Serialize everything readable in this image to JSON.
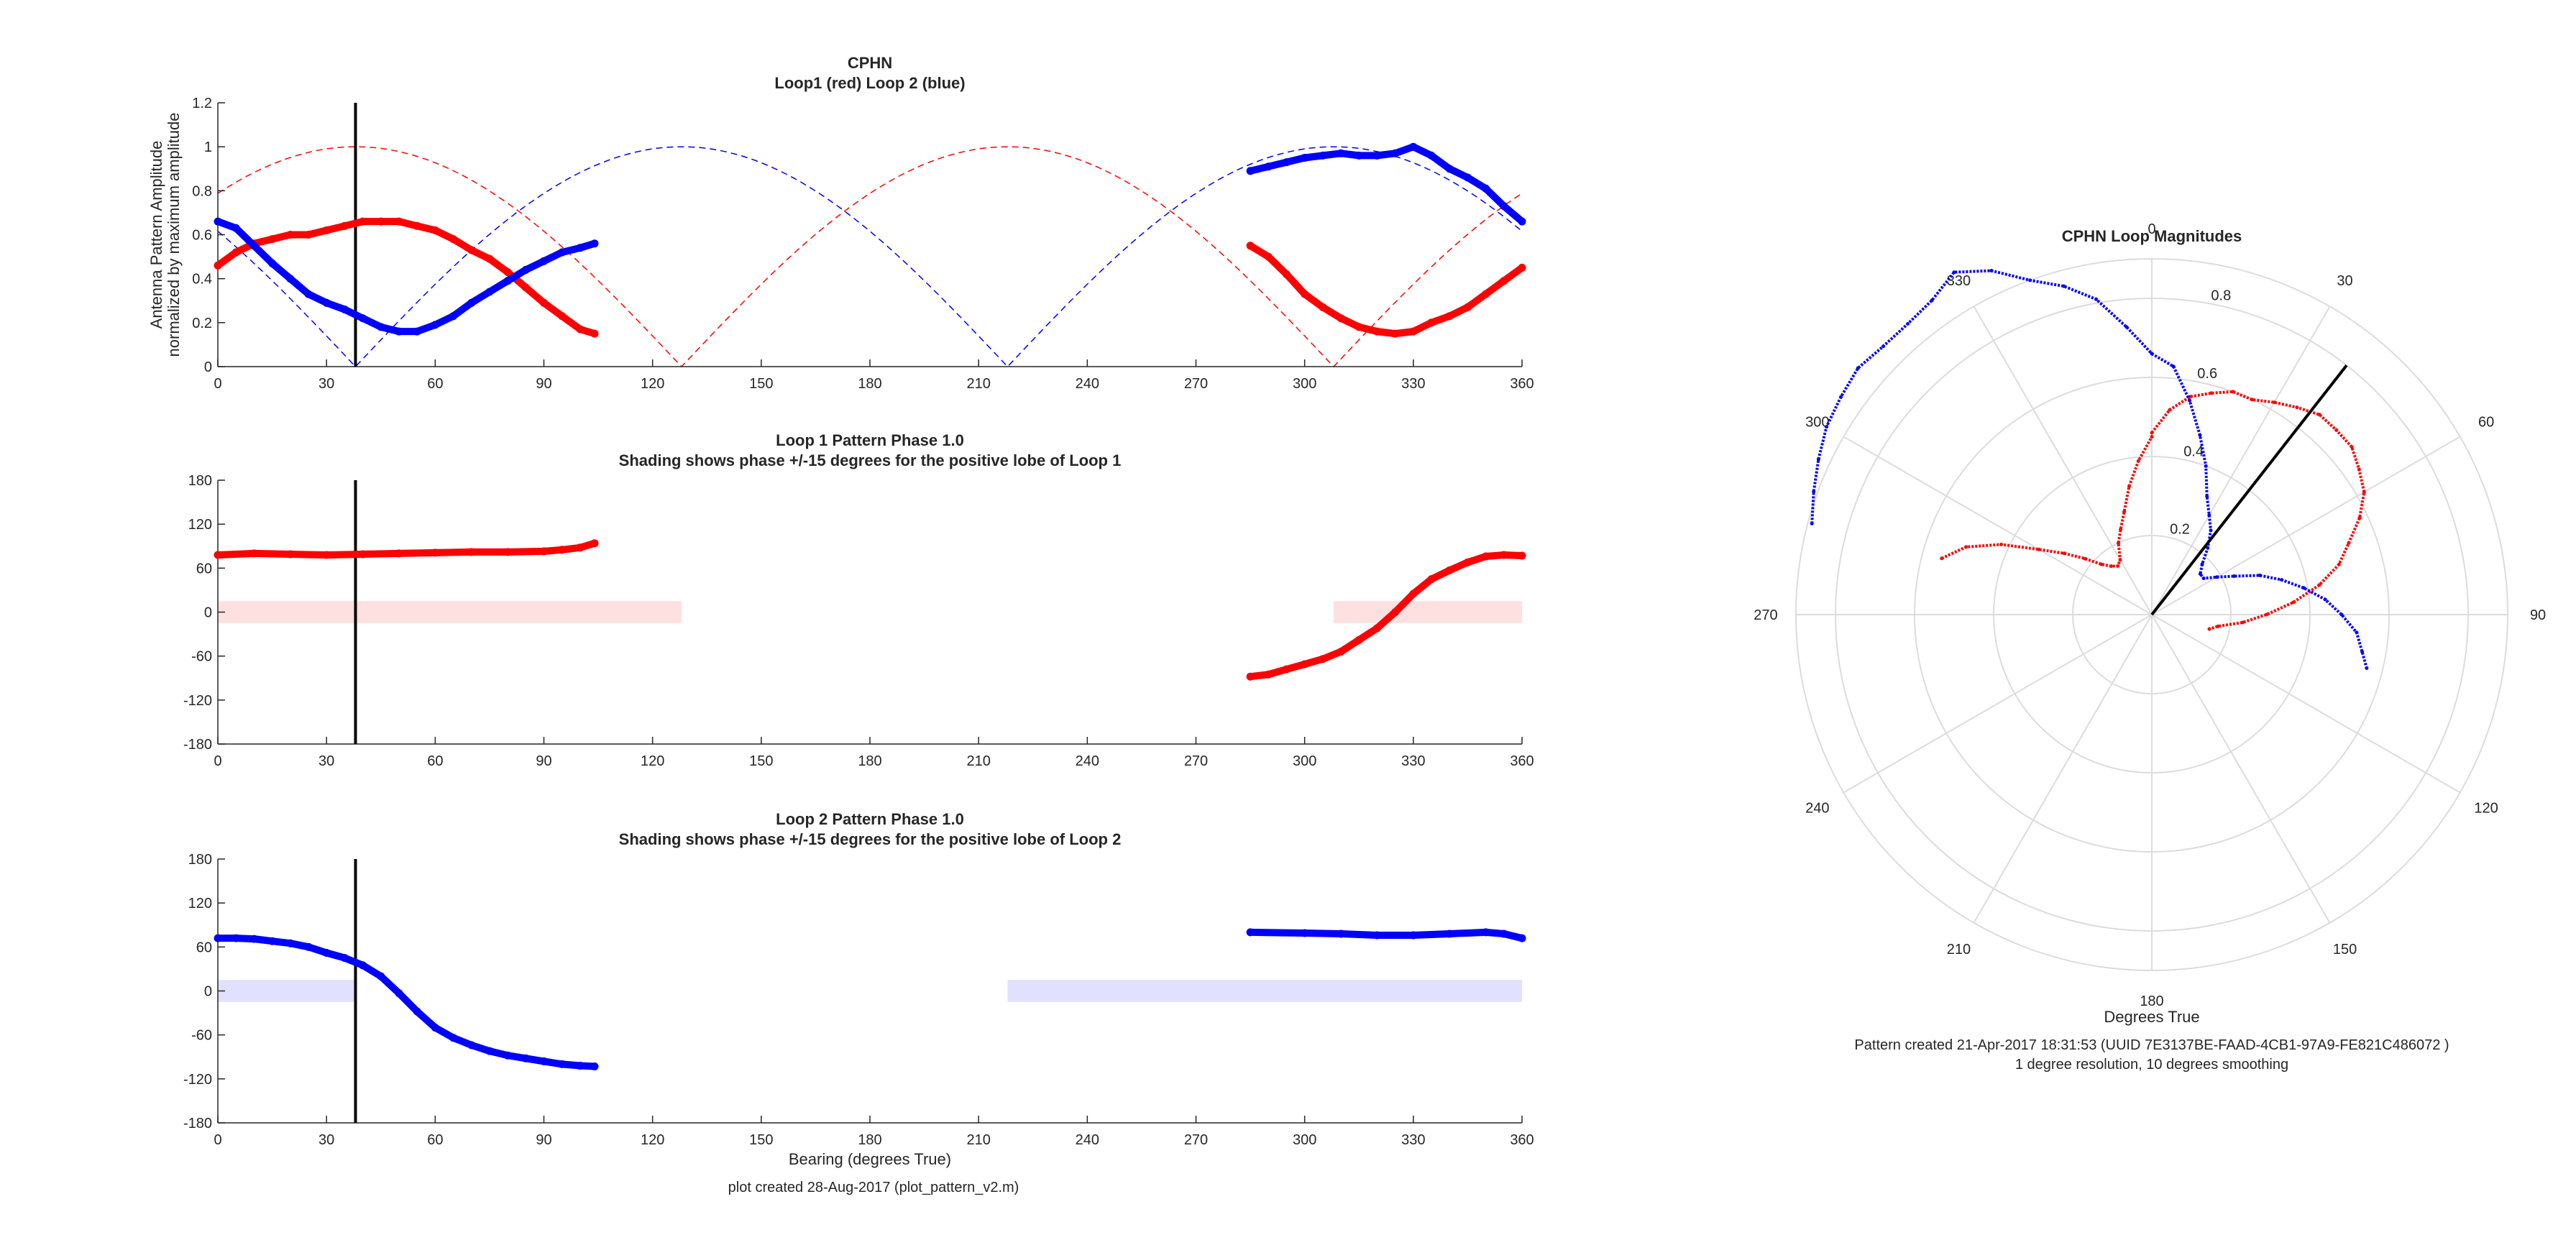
{
  "chart_data": [
    {
      "type": "line",
      "title": "CPHN",
      "subtitle": "Loop1 (red) Loop 2 (blue)",
      "xlabel": "",
      "ylabel": "Antenna Pattern Amplitude",
      "ylabel2": "normalized by maximum amplitude",
      "xlim": [
        0,
        360
      ],
      "ylim": [
        0,
        1.2
      ],
      "xticks": [
        0,
        30,
        60,
        90,
        120,
        150,
        180,
        210,
        240,
        270,
        300,
        330,
        360
      ],
      "yticks": [
        0,
        0.2,
        0.4,
        0.6,
        0.8,
        1,
        1.2
      ],
      "yticklabels": [
        "0",
        "0.2",
        "0.4",
        "0.6",
        "0.8",
        "1",
        "1.2"
      ],
      "vline_x": 38,
      "colors": {
        "loop1": "#ff0000",
        "loop2": "#0000ff",
        "ref": "#000000"
      },
      "reference_curves": [
        {
          "loop": "loop1",
          "style": "dashed",
          "function": "abs(cos(bearing - 38))"
        },
        {
          "loop": "loop2",
          "style": "dashed",
          "function": "abs(sin(bearing - 38))"
        }
      ],
      "series": [
        {
          "loop": "loop1",
          "segments": [
            {
              "x": [
                0,
                5,
                10,
                15,
                20,
                25,
                30,
                35,
                40,
                45,
                50,
                55,
                60,
                65,
                70,
                75,
                80,
                85,
                90,
                95,
                100,
                104
              ],
              "y": [
                0.46,
                0.52,
                0.56,
                0.58,
                0.6,
                0.6,
                0.62,
                0.64,
                0.66,
                0.66,
                0.66,
                0.64,
                0.62,
                0.58,
                0.53,
                0.49,
                0.43,
                0.36,
                0.29,
                0.23,
                0.17,
                0.15
              ]
            },
            {
              "x": [
                285,
                290,
                295,
                300,
                305,
                310,
                315,
                320,
                325,
                330,
                335,
                340,
                345,
                350,
                355,
                360
              ],
              "y": [
                0.55,
                0.5,
                0.42,
                0.33,
                0.27,
                0.22,
                0.18,
                0.16,
                0.15,
                0.16,
                0.2,
                0.23,
                0.27,
                0.33,
                0.39,
                0.45
              ]
            }
          ]
        },
        {
          "loop": "loop2",
          "segments": [
            {
              "x": [
                0,
                5,
                10,
                15,
                20,
                25,
                30,
                35,
                40,
                45,
                50,
                55,
                60,
                65,
                70,
                75,
                80,
                85,
                90,
                95,
                100,
                104
              ],
              "y": [
                0.66,
                0.63,
                0.55,
                0.47,
                0.4,
                0.33,
                0.29,
                0.26,
                0.22,
                0.18,
                0.16,
                0.16,
                0.19,
                0.23,
                0.29,
                0.34,
                0.39,
                0.44,
                0.48,
                0.52,
                0.54,
                0.56
              ]
            },
            {
              "x": [
                285,
                290,
                295,
                300,
                305,
                310,
                315,
                320,
                325,
                330,
                335,
                340,
                345,
                350,
                355,
                360
              ],
              "y": [
                0.89,
                0.91,
                0.93,
                0.95,
                0.96,
                0.97,
                0.96,
                0.96,
                0.97,
                1.0,
                0.96,
                0.9,
                0.86,
                0.81,
                0.73,
                0.66
              ]
            }
          ]
        }
      ]
    },
    {
      "type": "line",
      "title": "Loop 1 Pattern Phase 1.0",
      "subtitle": "Shading shows phase +/-15 degrees for the positive lobe of Loop 1",
      "xlabel": "",
      "ylabel": "",
      "xlim": [
        0,
        360
      ],
      "ylim": [
        -180,
        180
      ],
      "xticks": [
        0,
        30,
        60,
        90,
        120,
        150,
        180,
        210,
        240,
        270,
        300,
        330,
        360
      ],
      "yticks": [
        -180,
        -120,
        -60,
        0,
        60,
        120,
        180
      ],
      "yticklabels": [
        "-180",
        "-120",
        "-60",
        "0",
        "60",
        "120",
        "180"
      ],
      "vline_x": 38,
      "shading": {
        "color": "#ffe0e0",
        "y": [
          -15,
          15
        ],
        "ranges": [
          [
            0,
            128
          ],
          [
            308,
            360
          ]
        ]
      },
      "series": [
        {
          "loop": "loop1",
          "segments": [
            {
              "x": [
                0,
                10,
                20,
                30,
                40,
                50,
                60,
                70,
                80,
                90,
                95,
                100,
                104
              ],
              "y": [
                78,
                80,
                79,
                78,
                79,
                80,
                81,
                82,
                82,
                83,
                85,
                88,
                94
              ]
            },
            {
              "x": [
                285,
                290,
                295,
                300,
                305,
                310,
                315,
                320,
                325,
                330,
                335,
                340,
                345,
                350,
                355,
                360
              ],
              "y": [
                -88,
                -85,
                -78,
                -71,
                -64,
                -54,
                -38,
                -22,
                0,
                25,
                45,
                57,
                68,
                76,
                78,
                77
              ]
            }
          ]
        }
      ]
    },
    {
      "type": "line",
      "title": "Loop 2 Pattern Phase 1.0",
      "subtitle": "Shading shows phase +/-15 degrees for the positive lobe of Loop 2",
      "xlabel": "Bearing (degrees True)",
      "ylabel": "",
      "xlim": [
        0,
        360
      ],
      "ylim": [
        -180,
        180
      ],
      "xticks": [
        0,
        30,
        60,
        90,
        120,
        150,
        180,
        210,
        240,
        270,
        300,
        330,
        360
      ],
      "yticks": [
        -180,
        -120,
        -60,
        0,
        60,
        120,
        180
      ],
      "yticklabels": [
        "-180",
        "-120",
        "-60",
        "0",
        "60",
        "120",
        "180"
      ],
      "vline_x": 38,
      "shading": {
        "color": "#e0e0ff",
        "y": [
          -15,
          15
        ],
        "ranges": [
          [
            0,
            38
          ],
          [
            218,
            360
          ]
        ]
      },
      "series": [
        {
          "loop": "loop2",
          "segments": [
            {
              "x": [
                0,
                5,
                10,
                15,
                20,
                25,
                30,
                35,
                40,
                45,
                50,
                55,
                60,
                65,
                70,
                75,
                80,
                85,
                90,
                95,
                100,
                104
              ],
              "y": [
                72,
                72,
                71,
                68,
                65,
                60,
                52,
                45,
                35,
                20,
                -3,
                -28,
                -50,
                -64,
                -74,
                -82,
                -88,
                -92,
                -96,
                -100,
                -102,
                -103
              ]
            },
            {
              "x": [
                285,
                300,
                310,
                320,
                330,
                340,
                350,
                355,
                360
              ],
              "y": [
                80,
                79,
                78,
                76,
                76,
                78,
                80,
                78,
                72
              ]
            }
          ]
        }
      ]
    },
    {
      "type": "polar",
      "title": "CPHN Loop Magnitudes",
      "theta_direction": "clockwise",
      "theta_zero": "top",
      "theta_ticks": [
        0,
        30,
        60,
        90,
        120,
        150,
        180,
        210,
        240,
        270,
        300,
        330
      ],
      "rlim": [
        0,
        0.9
      ],
      "r_ticks": [
        0.2,
        0.4,
        0.6,
        0.8
      ],
      "r_tick_labels": [
        "0.2",
        "0.4",
        "0.6",
        "0.8"
      ],
      "xlabel": "Degrees True",
      "bearing_line": {
        "theta": 38,
        "r": 0.8
      },
      "series": [
        {
          "loop": "loop1",
          "segments": [
            {
              "theta": [
                0,
                5,
                10,
                15,
                20,
                25,
                30,
                35,
                40,
                45,
                50,
                55,
                60,
                65,
                70,
                75,
                80,
                85,
                90,
                95,
                100,
                104
              ],
              "r": [
                0.46,
                0.52,
                0.56,
                0.58,
                0.6,
                0.6,
                0.62,
                0.64,
                0.66,
                0.66,
                0.66,
                0.64,
                0.62,
                0.58,
                0.53,
                0.49,
                0.43,
                0.36,
                0.29,
                0.23,
                0.17,
                0.15
              ]
            },
            {
              "theta": [
                285,
                290,
                295,
                300,
                305,
                310,
                315,
                320,
                325,
                330,
                335,
                340,
                345,
                350,
                355,
                360
              ],
              "r": [
                0.55,
                0.5,
                0.42,
                0.33,
                0.27,
                0.22,
                0.18,
                0.16,
                0.15,
                0.16,
                0.2,
                0.23,
                0.27,
                0.33,
                0.39,
                0.45
              ]
            }
          ]
        },
        {
          "loop": "loop2",
          "segments": [
            {
              "theta": [
                0,
                5,
                10,
                15,
                20,
                25,
                30,
                35,
                40,
                45,
                50,
                55,
                60,
                65,
                70,
                75,
                80,
                85,
                90,
                95,
                100,
                104
              ],
              "r": [
                0.66,
                0.63,
                0.55,
                0.47,
                0.4,
                0.33,
                0.29,
                0.26,
                0.22,
                0.18,
                0.16,
                0.16,
                0.19,
                0.23,
                0.29,
                0.34,
                0.39,
                0.44,
                0.48,
                0.52,
                0.54,
                0.56
              ]
            },
            {
              "theta": [
                285,
                290,
                295,
                300,
                305,
                310,
                315,
                320,
                325,
                330,
                335,
                340,
                345,
                350,
                355,
                360
              ],
              "r": [
                0.89,
                0.91,
                0.93,
                0.95,
                0.96,
                0.97,
                0.96,
                0.96,
                0.97,
                1.0,
                0.96,
                0.9,
                0.86,
                0.81,
                0.73,
                0.66
              ]
            }
          ]
        }
      ]
    }
  ],
  "footer_left": "plot created 28-Aug-2017 (plot_pattern_v2.m)",
  "footer_right_1": "Pattern created 21-Apr-2017 18:31:53 (UUID 7E3137BE-FAAD-4CB1-97A9-FE821C486072 )",
  "footer_right_2": "1 degree resolution, 10 degrees smoothing"
}
